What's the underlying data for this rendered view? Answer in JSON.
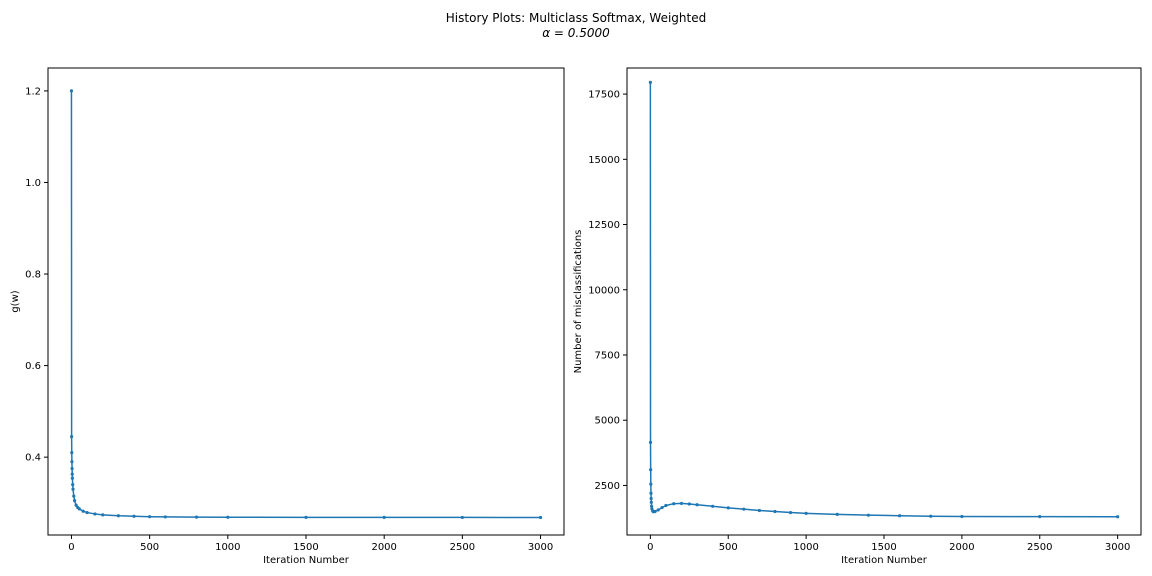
{
  "figure": {
    "title_line1": "History Plots: Multiclass Softmax, Weighted",
    "title_line2": "α = 0.5000",
    "series_color": "#1f77b4"
  },
  "chart_data": [
    {
      "type": "line",
      "title": "",
      "xlabel": "Iteration Number",
      "ylabel": "g(w)",
      "xlim": [
        -150,
        3150
      ],
      "ylim": [
        0.23,
        1.25
      ],
      "xticks": [
        0,
        500,
        1000,
        1500,
        2000,
        2500,
        3000
      ],
      "xtick_labels": [
        "0",
        "500",
        "1000",
        "1500",
        "2000",
        "2500",
        "3000"
      ],
      "yticks": [
        0.4,
        0.6,
        0.8,
        1.0,
        1.2
      ],
      "ytick_labels": [
        "0.4",
        "0.6",
        "0.8",
        "1.0",
        "1.2"
      ],
      "grid": false,
      "series": [
        {
          "x": [
            0,
            1,
            2,
            3,
            4,
            5,
            6,
            8,
            10,
            15,
            20,
            30,
            40,
            50,
            75,
            100,
            150,
            200,
            300,
            400,
            500,
            600,
            800,
            1000,
            1500,
            2000,
            2500,
            3000
          ],
          "y": [
            1.2,
            0.445,
            0.41,
            0.39,
            0.375,
            0.363,
            0.354,
            0.34,
            0.33,
            0.315,
            0.305,
            0.295,
            0.29,
            0.287,
            0.282,
            0.279,
            0.276,
            0.274,
            0.272,
            0.271,
            0.27,
            0.2695,
            0.269,
            0.2688,
            0.2686,
            0.2685,
            0.2684,
            0.2683
          ]
        }
      ]
    },
    {
      "type": "line",
      "title": "",
      "xlabel": "Iteration Number",
      "ylabel": "Number of misclassifications",
      "xlim": [
        -150,
        3150
      ],
      "ylim": [
        600,
        18500
      ],
      "xticks": [
        0,
        500,
        1000,
        1500,
        2000,
        2500,
        3000
      ],
      "xtick_labels": [
        "0",
        "500",
        "1000",
        "1500",
        "2000",
        "2500",
        "3000"
      ],
      "yticks": [
        2500,
        5000,
        7500,
        10000,
        12500,
        15000,
        17500
      ],
      "ytick_labels": [
        "2500",
        "5000",
        "7500",
        "10000",
        "12500",
        "15000",
        "17500"
      ],
      "grid": false,
      "series": [
        {
          "x": [
            0,
            1,
            2,
            3,
            4,
            5,
            6,
            8,
            10,
            15,
            20,
            30,
            50,
            75,
            100,
            150,
            200,
            250,
            300,
            400,
            500,
            600,
            700,
            800,
            900,
            1000,
            1200,
            1400,
            1600,
            1800,
            2000,
            2500,
            3000
          ],
          "y": [
            17950,
            4150,
            3100,
            2550,
            2200,
            2000,
            1850,
            1700,
            1600,
            1520,
            1490,
            1500,
            1560,
            1650,
            1730,
            1800,
            1810,
            1790,
            1760,
            1700,
            1640,
            1590,
            1540,
            1500,
            1460,
            1430,
            1390,
            1360,
            1340,
            1320,
            1310,
            1305,
            1300
          ]
        }
      ]
    }
  ]
}
